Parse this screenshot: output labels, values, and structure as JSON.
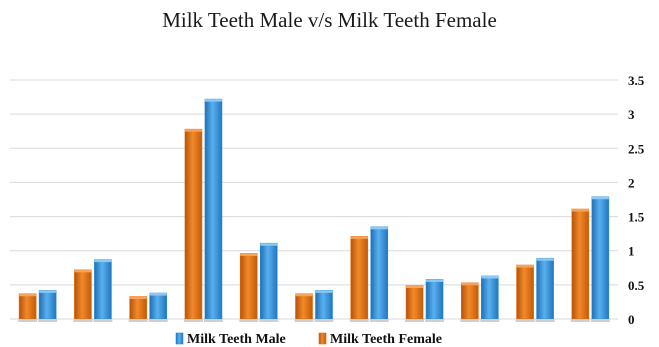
{
  "chart_data": {
    "type": "bar",
    "title": "Milk Teeth Male v/s Milk Teeth Female",
    "xlabel": "",
    "ylabel": "",
    "ylim": [
      0,
      3.5
    ],
    "yticks": [
      "0",
      "0.5",
      "1",
      "1.5",
      "2",
      "2.5",
      "3",
      "3.5"
    ],
    "grid": true,
    "legend_position": "bottom",
    "categories": [
      "",
      "",
      "",
      "",
      "",
      "",
      "",
      "",
      "",
      "",
      ""
    ],
    "series": [
      {
        "name": "Milk Teeth Female",
        "color": "#E46C0A",
        "values": [
          0.37,
          0.72,
          0.33,
          2.78,
          0.96,
          0.37,
          1.21,
          0.49,
          0.53,
          0.79,
          1.61
        ]
      },
      {
        "name": "Milk Teeth Male",
        "color": "#2E8BD6",
        "values": [
          0.42,
          0.87,
          0.38,
          3.22,
          1.11,
          0.42,
          1.35,
          0.58,
          0.63,
          0.89,
          1.79
        ]
      }
    ],
    "legend_order": [
      "Milk Teeth Male",
      "Milk Teeth Female"
    ]
  }
}
